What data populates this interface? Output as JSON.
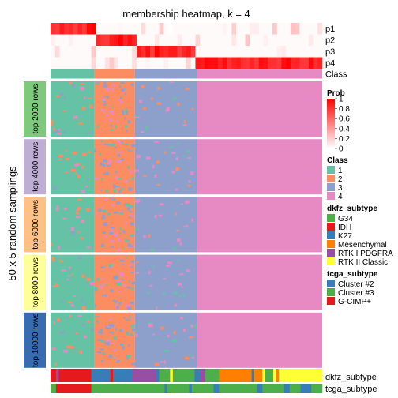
{
  "chart_data": {
    "type": "heatmap",
    "title": "membership heatmap, k = 4",
    "ylabel": "50 x 5 random samplings",
    "column_groups": [
      {
        "class": "1",
        "fraction": 0.16
      },
      {
        "class": "2",
        "fraction": 0.15
      },
      {
        "class": "3",
        "fraction": 0.23
      },
      {
        "class": "4",
        "fraction": 0.46
      }
    ],
    "prob_rows": [
      "p1",
      "p2",
      "p3",
      "p4"
    ],
    "class_row_label": "Class",
    "row_groups": [
      {
        "label": "top 2000 rows",
        "color": "#7FC97F"
      },
      {
        "label": "top 4000 rows",
        "color": "#BEAED4"
      },
      {
        "label": "top 6000 rows",
        "color": "#FDC086"
      },
      {
        "label": "top 8000 rows",
        "color": "#FFFF99"
      },
      {
        "label": "top 10000 rows",
        "color": "#386CB0"
      }
    ],
    "bottom_annotations": [
      "dkfz_subtype",
      "tcga_subtype"
    ],
    "legends": [
      {
        "title": "Prob",
        "type": "gradient",
        "ticks": [
          "1",
          "0.8",
          "0.6",
          "0.4",
          "0.2",
          "0"
        ],
        "low_color": "#FFFFFF",
        "high_color": "#FF0000"
      },
      {
        "title": "Class",
        "type": "discrete",
        "items": [
          {
            "label": "1",
            "color": "#66C2A5"
          },
          {
            "label": "2",
            "color": "#FC8D62"
          },
          {
            "label": "3",
            "color": "#8DA0CB"
          },
          {
            "label": "4",
            "color": "#E78AC3"
          }
        ]
      },
      {
        "title": "dkfz_subtype",
        "type": "discrete",
        "items": [
          {
            "label": "G34",
            "color": "#4DAF4A"
          },
          {
            "label": "IDH",
            "color": "#E41A1C"
          },
          {
            "label": "K27",
            "color": "#377EB8"
          },
          {
            "label": "Mesenchymal",
            "color": "#FF7F00"
          },
          {
            "label": "RTK I PDGFRA",
            "color": "#984EA3"
          },
          {
            "label": "RTK II Classic",
            "color": "#FFFF33"
          }
        ]
      },
      {
        "title": "tcga_subtype",
        "type": "discrete",
        "items": [
          {
            "label": "Cluster #2",
            "color": "#377EB8"
          },
          {
            "label": "Cluster #3",
            "color": "#4DAF4A"
          },
          {
            "label": "G-CIMP+",
            "color": "#E41A1C"
          }
        ]
      }
    ],
    "grid": false,
    "legend_position": "right"
  }
}
